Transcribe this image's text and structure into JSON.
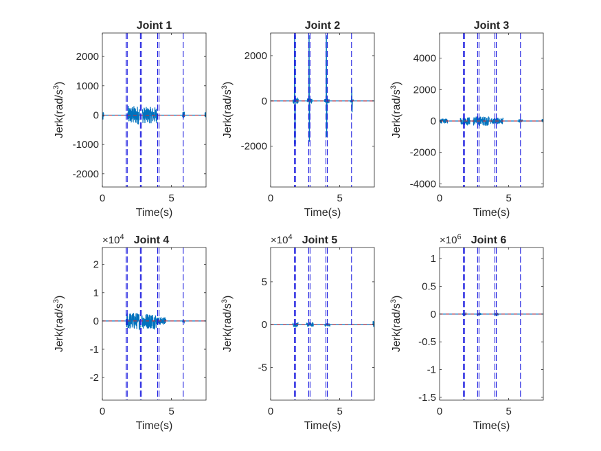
{
  "chart_data": [
    {
      "type": "line",
      "title": "Joint 1",
      "xlabel": "Time(s)",
      "ylabel_base": "Jerk(rad/s",
      "ylabel_exp": "3",
      "ylabel_close": ")",
      "multiplier": "",
      "multiplier_exp": "",
      "xlim": [
        0,
        7.5
      ],
      "ylim": [
        -2450,
        2800
      ],
      "xticks": [
        0,
        5
      ],
      "xtick_labels": [
        "0",
        "5"
      ],
      "yticks": [
        -2000,
        -1000,
        0,
        1000,
        2000
      ],
      "ytick_labels": [
        "-2000",
        "-1000",
        "0",
        "1000",
        "2000"
      ],
      "markers": [
        1.72,
        1.8,
        2.75,
        2.85,
        4.0,
        4.1,
        5.85
      ],
      "series": [
        {
          "x": [
            0,
            1.72,
            1.8,
            2.75,
            2.85,
            4.0,
            4.1,
            5.85,
            7.5
          ],
          "values": [
            0,
            0,
            0,
            0,
            0,
            0,
            0,
            0,
            0
          ]
        }
      ],
      "noise_segments": [
        {
          "x0": 1.85,
          "x1": 2.7,
          "amp": 320
        },
        {
          "x0": 2.9,
          "x1": 3.95,
          "amp": 280
        },
        {
          "x0": 0.0,
          "x1": 0.1,
          "amp": 180
        },
        {
          "x0": 5.8,
          "x1": 5.95,
          "amp": 120
        },
        {
          "x0": 7.42,
          "x1": 7.5,
          "amp": 160
        }
      ],
      "spikes": []
    },
    {
      "type": "line",
      "title": "Joint 2",
      "xlabel": "Time(s)",
      "ylabel_base": "Jerk(rad/s",
      "ylabel_exp": "3",
      "ylabel_close": ")",
      "multiplier": "",
      "multiplier_exp": "",
      "xlim": [
        0,
        7.5
      ],
      "ylim": [
        -3800,
        3000
      ],
      "xticks": [
        0,
        5
      ],
      "xtick_labels": [
        "0",
        "5"
      ],
      "yticks": [
        -2000,
        0,
        2000
      ],
      "ytick_labels": [
        "-2000",
        "0",
        "2000"
      ],
      "markers": [
        1.72,
        1.8,
        2.75,
        2.85,
        4.0,
        4.1,
        5.85
      ],
      "series": [
        {
          "x": [
            0,
            7.5
          ],
          "values": [
            0,
            0
          ]
        }
      ],
      "noise_segments": [
        {
          "x0": 1.6,
          "x1": 2.0,
          "amp": 120
        },
        {
          "x0": 2.65,
          "x1": 3.0,
          "amp": 110
        },
        {
          "x0": 3.9,
          "x1": 4.25,
          "amp": 110
        },
        {
          "x0": 5.75,
          "x1": 6.0,
          "amp": 70
        }
      ],
      "spikes": [
        {
          "x": 1.74,
          "hi": 2900,
          "lo": -1900
        },
        {
          "x": 2.78,
          "hi": 2900,
          "lo": -1800
        },
        {
          "x": 4.03,
          "hi": 2900,
          "lo": -1600
        },
        {
          "x": 5.87,
          "hi": 600,
          "lo": -500
        }
      ]
    },
    {
      "type": "line",
      "title": "Joint 3",
      "xlabel": "Time(s)",
      "ylabel_base": "Jerk(rad/s",
      "ylabel_exp": "3",
      "ylabel_close": ")",
      "multiplier": "",
      "multiplier_exp": "",
      "xlim": [
        0,
        7.5
      ],
      "ylim": [
        -4200,
        5600
      ],
      "xticks": [
        0,
        5
      ],
      "xtick_labels": [
        "0",
        "5"
      ],
      "yticks": [
        -4000,
        -2000,
        0,
        2000,
        4000
      ],
      "ytick_labels": [
        "-4000",
        "-2000",
        "0",
        "2000",
        "4000"
      ],
      "markers": [
        1.72,
        1.8,
        2.75,
        2.85,
        4.0,
        4.1,
        5.85
      ],
      "series": [
        {
          "x": [
            0,
            7.5
          ],
          "values": [
            0,
            0
          ]
        }
      ],
      "noise_segments": [
        {
          "x0": 0.0,
          "x1": 0.6,
          "amp": 150
        },
        {
          "x0": 1.5,
          "x1": 2.2,
          "amp": 250
        },
        {
          "x0": 2.4,
          "x1": 3.6,
          "amp": 300
        },
        {
          "x0": 3.7,
          "x1": 4.6,
          "amp": 200
        },
        {
          "x0": 5.7,
          "x1": 6.0,
          "amp": 100
        },
        {
          "x0": 7.4,
          "x1": 7.5,
          "amp": 120
        }
      ],
      "spikes": []
    },
    {
      "type": "line",
      "title": "Joint 4",
      "xlabel": "Time(s)",
      "ylabel_base": "Jerk(rad/s",
      "ylabel_exp": "3",
      "ylabel_close": ")",
      "multiplier": "×10",
      "multiplier_exp": "4",
      "xlim": [
        0,
        7.5
      ],
      "ylim": [
        -2.8,
        2.6
      ],
      "xticks": [
        0,
        5
      ],
      "xtick_labels": [
        "0",
        "5"
      ],
      "yticks": [
        -2,
        -1,
        0,
        1,
        2
      ],
      "ytick_labels": [
        "-2",
        "-1",
        "0",
        "1",
        "2"
      ],
      "markers": [
        1.72,
        1.8,
        2.75,
        2.85,
        4.0,
        4.1,
        5.85
      ],
      "series": [
        {
          "x": [
            0,
            7.5
          ],
          "values": [
            0,
            0
          ]
        }
      ],
      "noise_segments": [
        {
          "x0": 1.75,
          "x1": 2.75,
          "amp": 0.3
        },
        {
          "x0": 2.85,
          "x1": 3.9,
          "amp": 0.28
        },
        {
          "x0": 3.9,
          "x1": 4.6,
          "amp": 0.14
        },
        {
          "x0": 5.8,
          "x1": 5.95,
          "amp": 0.05
        }
      ],
      "spikes": []
    },
    {
      "type": "line",
      "title": "Joint 5",
      "xlabel": "Time(s)",
      "ylabel_base": "Jerk(rad/s",
      "ylabel_exp": "3",
      "ylabel_close": ")",
      "multiplier": "×10",
      "multiplier_exp": "4",
      "xlim": [
        0,
        7.5
      ],
      "ylim": [
        -8.8,
        9.0
      ],
      "xticks": [
        0,
        5
      ],
      "xtick_labels": [
        "0",
        "5"
      ],
      "yticks": [
        -5,
        0,
        5
      ],
      "ytick_labels": [
        "-5",
        "0",
        "5"
      ],
      "markers": [
        1.72,
        1.8,
        2.75,
        2.85,
        4.0,
        4.1,
        5.85
      ],
      "series": [
        {
          "x": [
            0,
            7.5
          ],
          "values": [
            0,
            0
          ]
        }
      ],
      "noise_segments": [
        {
          "x0": 1.6,
          "x1": 2.0,
          "amp": 0.25
        },
        {
          "x0": 2.6,
          "x1": 3.1,
          "amp": 0.25
        },
        {
          "x0": 3.9,
          "x1": 4.3,
          "amp": 0.2
        },
        {
          "x0": 7.4,
          "x1": 7.5,
          "amp": 0.5
        }
      ],
      "spikes": []
    },
    {
      "type": "line",
      "title": "Joint 6",
      "xlabel": "Time(s)",
      "ylabel_base": "Jerk(rad/s",
      "ylabel_exp": "3",
      "ylabel_close": ")",
      "multiplier": "×10",
      "multiplier_exp": "6",
      "xlim": [
        0,
        7.5
      ],
      "ylim": [
        -1.55,
        1.2
      ],
      "xticks": [
        0,
        5
      ],
      "xtick_labels": [
        "0",
        "5"
      ],
      "yticks": [
        -1.5,
        -1,
        -0.5,
        0,
        0.5,
        1
      ],
      "ytick_labels": [
        "-1.5",
        "-1",
        "-0.5",
        "0",
        "0.5",
        "1"
      ],
      "markers": [
        1.72,
        1.8,
        2.75,
        2.85,
        4.0,
        4.1,
        5.85
      ],
      "series": [
        {
          "x": [
            0,
            7.5
          ],
          "values": [
            0,
            0
          ]
        }
      ],
      "noise_segments": [
        {
          "x0": 1.65,
          "x1": 1.95,
          "amp": 0.02
        },
        {
          "x0": 2.7,
          "x1": 3.0,
          "amp": 0.02
        },
        {
          "x0": 3.95,
          "x1": 4.25,
          "amp": 0.025
        }
      ],
      "spikes": []
    }
  ]
}
